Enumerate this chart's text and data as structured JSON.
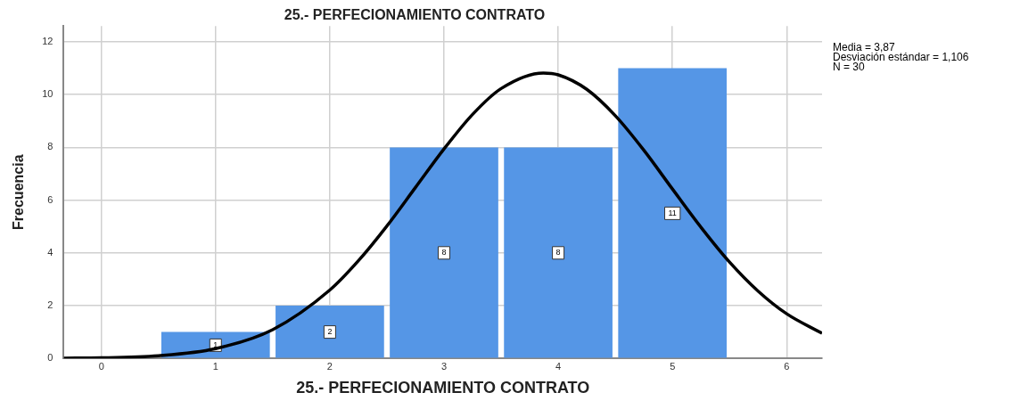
{
  "chart_data": {
    "type": "histogram",
    "title": "25.- PERFECIONAMIENTO CONTRATO",
    "xlabel": "25.- PERFECIONAMIENTO CONTRATO",
    "ylabel": "Frecuencia",
    "bins": [
      0.5,
      1.5,
      2.5,
      3.5,
      4.5,
      5.5
    ],
    "values": [
      1,
      2,
      8,
      8,
      11
    ],
    "color": "#5596e6",
    "value_labels": [
      "1",
      "2",
      "8",
      "8",
      "11"
    ],
    "series": [
      {
        "type": "line",
        "color": "#000000",
        "x": [
          -0.33,
          0,
          0.5,
          1,
          1.5,
          2,
          2.25,
          2.5,
          2.75,
          3,
          3.25,
          3.5,
          3.87,
          4,
          4.25,
          4.5,
          4.75,
          5,
          5.25,
          5.5,
          5.75,
          6,
          6.31
        ],
        "values": [
          0.01,
          0.02,
          0.1,
          0.37,
          1.09,
          2.59,
          3.7,
          5.02,
          6.48,
          7.94,
          9.25,
          10.23,
          10.82,
          10.75,
          10.2,
          9.2,
          7.89,
          6.42,
          4.97,
          3.65,
          2.55,
          1.69,
          0.95
        ]
      }
    ],
    "xlim": [
      -0.33,
      6.31
    ],
    "ylim": [
      0,
      12.6
    ],
    "xticks": [
      0,
      1,
      2,
      3,
      4,
      5,
      6
    ],
    "yticks": [
      0,
      2,
      4,
      6,
      8,
      10,
      12
    ],
    "grid": true,
    "annotations": [
      "Media = 3,87",
      "Desviación estándar = 1,106",
      "N = 30"
    ]
  }
}
